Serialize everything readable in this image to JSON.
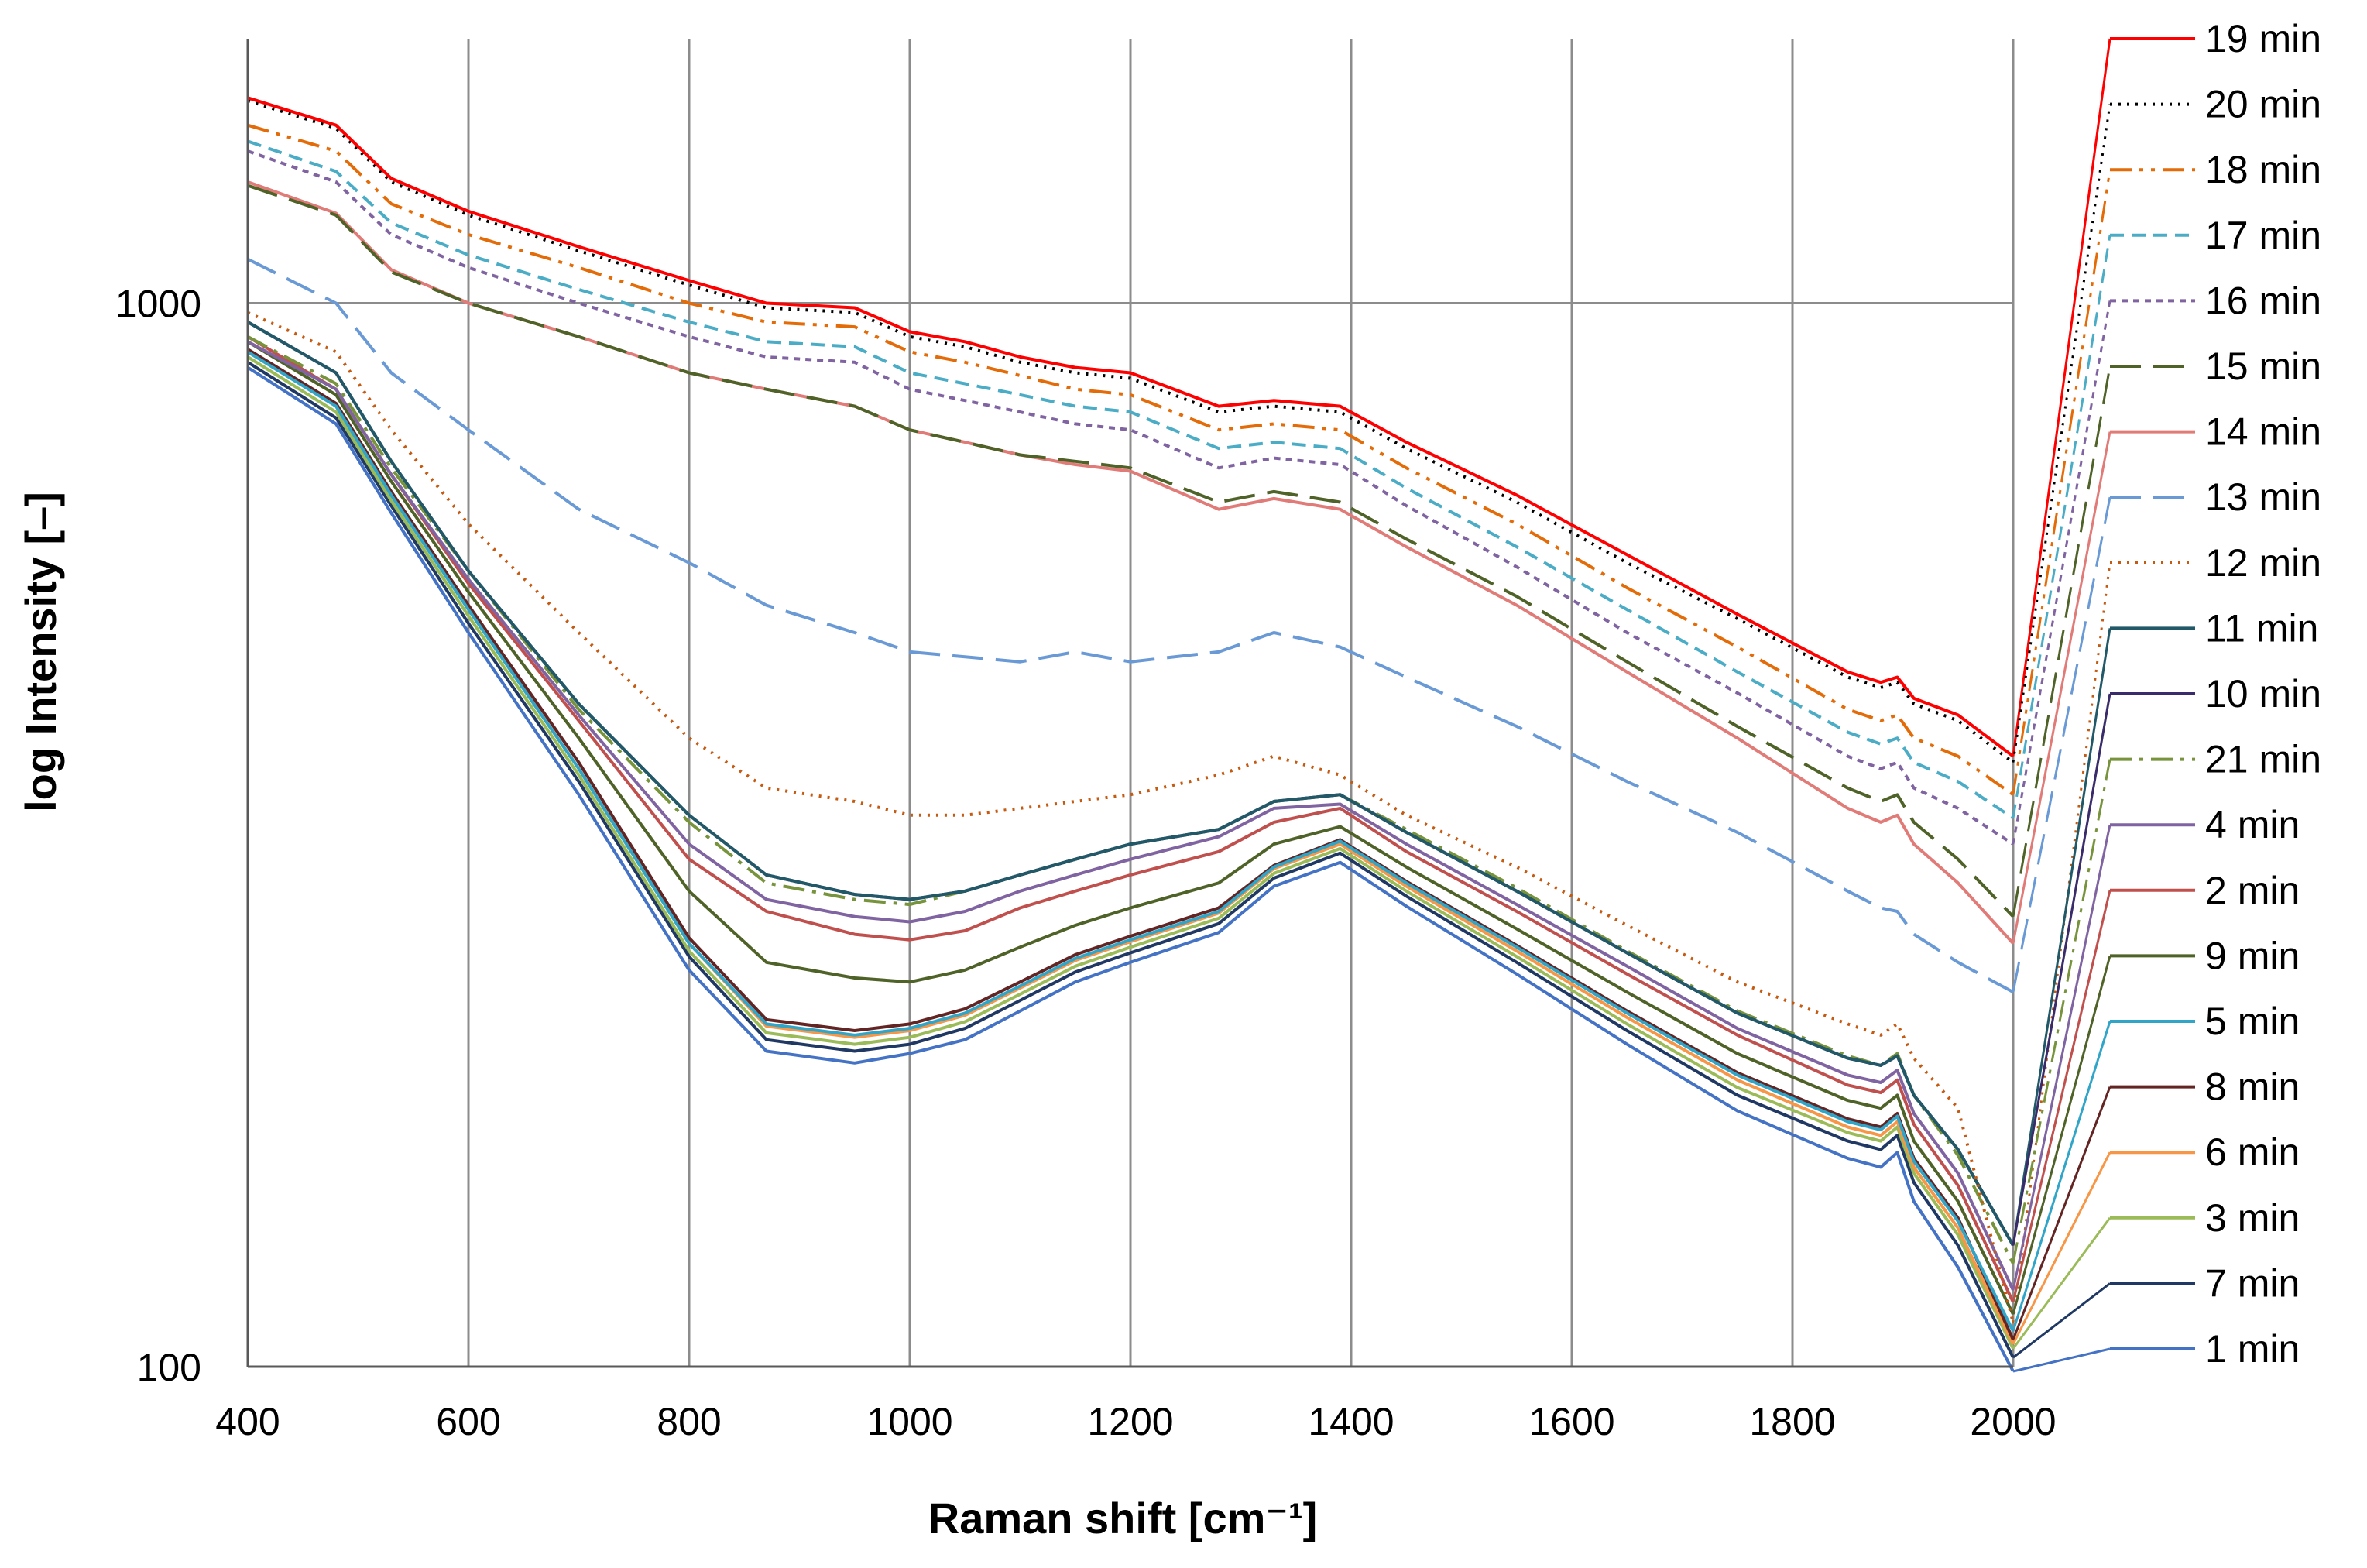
{
  "chart_data": {
    "type": "line",
    "title": "",
    "xlabel": "Raman shift [cm⁻¹]",
    "ylabel": "log Intensity [–]",
    "xlim": [
      400,
      2000
    ],
    "ylim": [
      100,
      1700
    ],
    "yscale": "log",
    "x_ticks": [
      400,
      600,
      800,
      1000,
      1200,
      1400,
      1600,
      1800,
      2000
    ],
    "x_tick_labels": [
      "400",
      "600",
      "800",
      "1000",
      "1200",
      "1400",
      "1600",
      "1800",
      "2000"
    ],
    "y_ticks": [
      100,
      1000
    ],
    "y_tick_labels": [
      "100",
      "1000"
    ],
    "grid": "vertical lines at x ticks, horizontal lines at y ticks",
    "legend_position": "right",
    "x": [
      400,
      480,
      530,
      600,
      700,
      800,
      870,
      950,
      1000,
      1050,
      1100,
      1150,
      1200,
      1280,
      1330,
      1390,
      1450,
      1550,
      1650,
      1750,
      1850,
      1880,
      1895,
      1910,
      1950,
      2000
    ],
    "series": [
      {
        "name": "19 min",
        "color": "#ff0000",
        "dash": "solid",
        "values": [
          1560,
          1470,
          1310,
          1220,
          1130,
          1050,
          1000,
          990,
          940,
          920,
          890,
          870,
          860,
          800,
          810,
          800,
          740,
          660,
          580,
          510,
          450,
          440,
          445,
          425,
          410,
          375
        ]
      },
      {
        "name": "20 min",
        "color": "#000000",
        "dash": "dot",
        "values": [
          1550,
          1460,
          1300,
          1210,
          1120,
          1040,
          990,
          980,
          930,
          910,
          880,
          860,
          850,
          790,
          800,
          790,
          730,
          650,
          570,
          505,
          445,
          435,
          440,
          420,
          405,
          370
        ]
      },
      {
        "name": "18 min",
        "color": "#e36c09",
        "dash": "dashdotdot",
        "values": [
          1470,
          1390,
          1240,
          1160,
          1080,
          1000,
          960,
          950,
          900,
          880,
          855,
          830,
          820,
          760,
          770,
          760,
          700,
          620,
          540,
          475,
          415,
          405,
          410,
          390,
          375,
          345
        ]
      },
      {
        "name": "17 min",
        "color": "#4bacc6",
        "dash": "shortdash",
        "values": [
          1420,
          1330,
          1190,
          1110,
          1030,
          960,
          920,
          910,
          860,
          840,
          820,
          800,
          790,
          730,
          740,
          730,
          670,
          590,
          515,
          450,
          395,
          385,
          390,
          370,
          355,
          328
        ]
      },
      {
        "name": "16 min",
        "color": "#8064a2",
        "dash": "roundshort",
        "values": [
          1390,
          1300,
          1160,
          1080,
          1000,
          930,
          890,
          880,
          830,
          810,
          790,
          770,
          760,
          700,
          715,
          705,
          645,
          565,
          490,
          430,
          375,
          365,
          370,
          350,
          335,
          310
        ]
      },
      {
        "name": "15 min",
        "color": "#4f6228",
        "dash": "longdash",
        "values": [
          1290,
          1210,
          1070,
          1000,
          930,
          860,
          830,
          800,
          760,
          740,
          720,
          710,
          700,
          650,
          665,
          650,
          600,
          530,
          460,
          400,
          350,
          340,
          345,
          325,
          300,
          265
        ]
      },
      {
        "name": "14 min",
        "color": "#e07b78",
        "dash": "solid",
        "values": [
          1300,
          1215,
          1075,
          1000,
          930,
          860,
          830,
          800,
          760,
          740,
          720,
          705,
          695,
          640,
          655,
          640,
          590,
          520,
          450,
          390,
          335,
          325,
          330,
          310,
          285,
          250
        ]
      },
      {
        "name": "13 min",
        "color": "#6a9ad6",
        "dash": "longdash",
        "values": [
          1100,
          1000,
          860,
          760,
          640,
          570,
          520,
          490,
          470,
          465,
          460,
          470,
          460,
          470,
          490,
          475,
          445,
          400,
          355,
          318,
          280,
          270,
          268,
          255,
          240,
          225
        ]
      },
      {
        "name": "12 min",
        "color": "#c55a11",
        "dash": "dot",
        "values": [
          980,
          900,
          760,
          620,
          490,
          390,
          350,
          340,
          330,
          330,
          335,
          340,
          345,
          360,
          375,
          360,
          330,
          295,
          260,
          230,
          210,
          205,
          210,
          195,
          175,
          110
        ]
      },
      {
        "name": "11 min",
        "color": "#215968",
        "dash": "solid",
        "values": [
          960,
          860,
          710,
          560,
          420,
          330,
          290,
          278,
          275,
          280,
          290,
          300,
          310,
          320,
          340,
          345,
          318,
          280,
          245,
          215,
          195,
          192,
          196,
          180,
          160,
          130
        ]
      },
      {
        "name": "10 min",
        "color": "#3a2c6a",
        "dash": "solid",
        "values": [
          960,
          860,
          710,
          560,
          420,
          330,
          290,
          278,
          275,
          280,
          290,
          300,
          310,
          320,
          340,
          345,
          318,
          280,
          245,
          215,
          195,
          192,
          196,
          180,
          160,
          130
        ]
      },
      {
        "name": "21 min",
        "color": "#77933c",
        "dash": "dashdot",
        "values": [
          930,
          840,
          700,
          560,
          415,
          325,
          285,
          275,
          272,
          280,
          290,
          300,
          310,
          320,
          340,
          345,
          320,
          282,
          246,
          216,
          196,
          192,
          197,
          180,
          158,
          125
        ]
      },
      {
        "name": "4 min",
        "color": "#8064a2",
        "dash": "solid",
        "values": [
          920,
          830,
          690,
          550,
          410,
          310,
          275,
          265,
          262,
          268,
          280,
          290,
          300,
          315,
          335,
          338,
          310,
          272,
          238,
          208,
          188,
          185,
          190,
          173,
          152,
          118
        ]
      },
      {
        "name": "2 min",
        "color": "#c0504d",
        "dash": "solid",
        "values": [
          930,
          830,
          690,
          545,
          405,
          300,
          268,
          255,
          252,
          257,
          270,
          280,
          290,
          305,
          325,
          335,
          305,
          268,
          234,
          205,
          184,
          181,
          186,
          169,
          148,
          115
        ]
      },
      {
        "name": "9 min",
        "color": "#4f6228",
        "dash": "solid",
        "values": [
          920,
          820,
          680,
          535,
          390,
          280,
          240,
          232,
          230,
          236,
          248,
          260,
          270,
          285,
          310,
          322,
          295,
          258,
          225,
          197,
          178,
          175,
          180,
          163,
          143,
          112
        ]
      },
      {
        "name": "5 min",
        "color": "#31a5c8",
        "dash": "solid",
        "values": [
          900,
          800,
          660,
          515,
          365,
          250,
          210,
          205,
          208,
          215,
          228,
          242,
          252,
          268,
          295,
          312,
          285,
          248,
          215,
          188,
          170,
          167,
          172,
          156,
          137,
          108
        ]
      },
      {
        "name": "8 min",
        "color": "#632523",
        "dash": "solid",
        "values": [
          905,
          805,
          665,
          520,
          370,
          253,
          212,
          207,
          210,
          217,
          230,
          244,
          254,
          270,
          296,
          313,
          286,
          249,
          216,
          189,
          171,
          168,
          173,
          157,
          138,
          106
        ]
      },
      {
        "name": "6 min",
        "color": "#f79646",
        "dash": "solid",
        "values": [
          900,
          800,
          660,
          515,
          365,
          250,
          209,
          204,
          207,
          214,
          227,
          241,
          251,
          267,
          294,
          310,
          283,
          246,
          213,
          186,
          168,
          165,
          170,
          154,
          135,
          105
        ]
      },
      {
        "name": "3 min",
        "color": "#9bbb59",
        "dash": "solid",
        "values": [
          890,
          790,
          652,
          508,
          360,
          246,
          206,
          201,
          204,
          211,
          224,
          238,
          248,
          264,
          291,
          307,
          280,
          243,
          210,
          183,
          166,
          163,
          168,
          152,
          133,
          104
        ]
      },
      {
        "name": "7 min",
        "color": "#1f3864",
        "dash": "solid",
        "values": [
          880,
          780,
          645,
          500,
          355,
          243,
          203,
          198,
          201,
          208,
          221,
          235,
          245,
          261,
          288,
          304,
          277,
          240,
          207,
          180,
          163,
          160,
          165,
          149,
          130,
          102
        ]
      },
      {
        "name": "1 min",
        "color": "#4472c4",
        "dash": "solid",
        "values": [
          870,
          770,
          635,
          490,
          345,
          236,
          198,
          193,
          197,
          203,
          216,
          230,
          240,
          256,
          283,
          298,
          271,
          234,
          201,
          174,
          157,
          154,
          159,
          143,
          124,
          99
        ]
      }
    ]
  }
}
